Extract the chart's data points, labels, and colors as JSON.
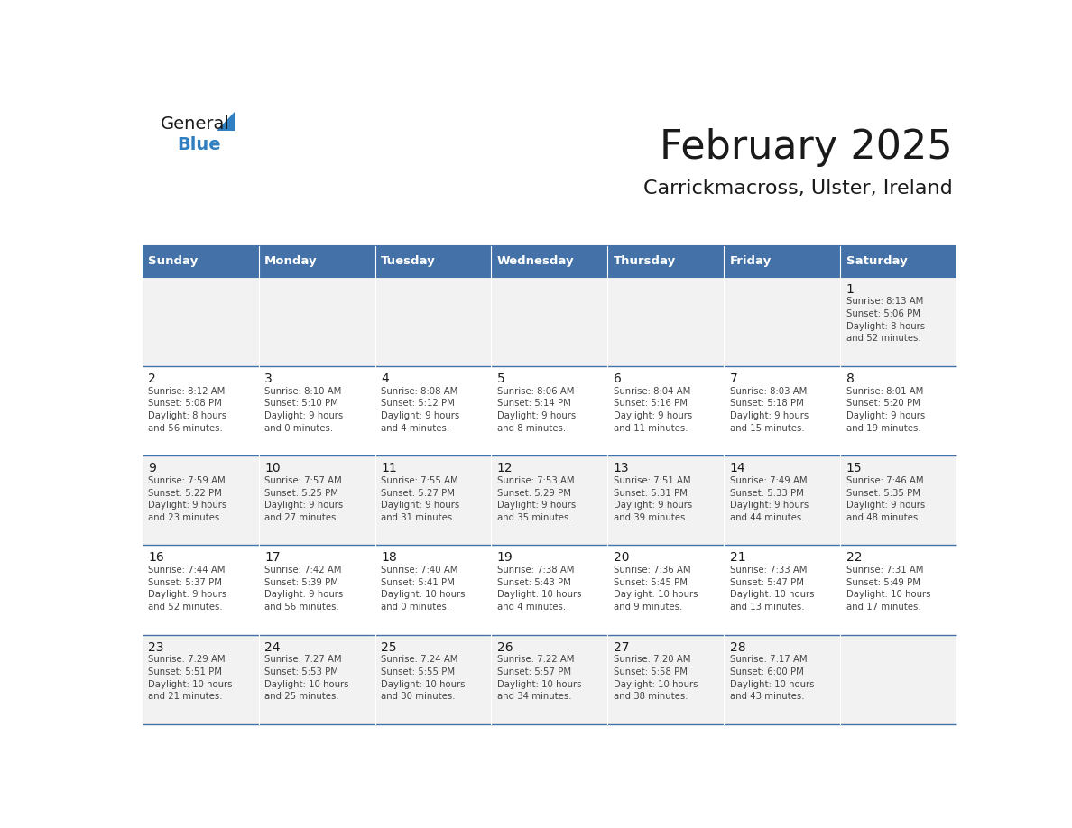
{
  "title": "February 2025",
  "subtitle": "Carrickmacross, Ulster, Ireland",
  "header_bg": "#4472a8",
  "header_text": "#ffffff",
  "day_names": [
    "Sunday",
    "Monday",
    "Tuesday",
    "Wednesday",
    "Thursday",
    "Friday",
    "Saturday"
  ],
  "row_bg_odd": "#f2f2f2",
  "row_bg_even": "#ffffff",
  "cell_border": "#4472a8",
  "text_color": "#444444",
  "day_num_color": "#1a1a1a",
  "calendar": [
    [
      {
        "day": null,
        "info": ""
      },
      {
        "day": null,
        "info": ""
      },
      {
        "day": null,
        "info": ""
      },
      {
        "day": null,
        "info": ""
      },
      {
        "day": null,
        "info": ""
      },
      {
        "day": null,
        "info": ""
      },
      {
        "day": 1,
        "info": "Sunrise: 8:13 AM\nSunset: 5:06 PM\nDaylight: 8 hours\nand 52 minutes."
      }
    ],
    [
      {
        "day": 2,
        "info": "Sunrise: 8:12 AM\nSunset: 5:08 PM\nDaylight: 8 hours\nand 56 minutes."
      },
      {
        "day": 3,
        "info": "Sunrise: 8:10 AM\nSunset: 5:10 PM\nDaylight: 9 hours\nand 0 minutes."
      },
      {
        "day": 4,
        "info": "Sunrise: 8:08 AM\nSunset: 5:12 PM\nDaylight: 9 hours\nand 4 minutes."
      },
      {
        "day": 5,
        "info": "Sunrise: 8:06 AM\nSunset: 5:14 PM\nDaylight: 9 hours\nand 8 minutes."
      },
      {
        "day": 6,
        "info": "Sunrise: 8:04 AM\nSunset: 5:16 PM\nDaylight: 9 hours\nand 11 minutes."
      },
      {
        "day": 7,
        "info": "Sunrise: 8:03 AM\nSunset: 5:18 PM\nDaylight: 9 hours\nand 15 minutes."
      },
      {
        "day": 8,
        "info": "Sunrise: 8:01 AM\nSunset: 5:20 PM\nDaylight: 9 hours\nand 19 minutes."
      }
    ],
    [
      {
        "day": 9,
        "info": "Sunrise: 7:59 AM\nSunset: 5:22 PM\nDaylight: 9 hours\nand 23 minutes."
      },
      {
        "day": 10,
        "info": "Sunrise: 7:57 AM\nSunset: 5:25 PM\nDaylight: 9 hours\nand 27 minutes."
      },
      {
        "day": 11,
        "info": "Sunrise: 7:55 AM\nSunset: 5:27 PM\nDaylight: 9 hours\nand 31 minutes."
      },
      {
        "day": 12,
        "info": "Sunrise: 7:53 AM\nSunset: 5:29 PM\nDaylight: 9 hours\nand 35 minutes."
      },
      {
        "day": 13,
        "info": "Sunrise: 7:51 AM\nSunset: 5:31 PM\nDaylight: 9 hours\nand 39 minutes."
      },
      {
        "day": 14,
        "info": "Sunrise: 7:49 AM\nSunset: 5:33 PM\nDaylight: 9 hours\nand 44 minutes."
      },
      {
        "day": 15,
        "info": "Sunrise: 7:46 AM\nSunset: 5:35 PM\nDaylight: 9 hours\nand 48 minutes."
      }
    ],
    [
      {
        "day": 16,
        "info": "Sunrise: 7:44 AM\nSunset: 5:37 PM\nDaylight: 9 hours\nand 52 minutes."
      },
      {
        "day": 17,
        "info": "Sunrise: 7:42 AM\nSunset: 5:39 PM\nDaylight: 9 hours\nand 56 minutes."
      },
      {
        "day": 18,
        "info": "Sunrise: 7:40 AM\nSunset: 5:41 PM\nDaylight: 10 hours\nand 0 minutes."
      },
      {
        "day": 19,
        "info": "Sunrise: 7:38 AM\nSunset: 5:43 PM\nDaylight: 10 hours\nand 4 minutes."
      },
      {
        "day": 20,
        "info": "Sunrise: 7:36 AM\nSunset: 5:45 PM\nDaylight: 10 hours\nand 9 minutes."
      },
      {
        "day": 21,
        "info": "Sunrise: 7:33 AM\nSunset: 5:47 PM\nDaylight: 10 hours\nand 13 minutes."
      },
      {
        "day": 22,
        "info": "Sunrise: 7:31 AM\nSunset: 5:49 PM\nDaylight: 10 hours\nand 17 minutes."
      }
    ],
    [
      {
        "day": 23,
        "info": "Sunrise: 7:29 AM\nSunset: 5:51 PM\nDaylight: 10 hours\nand 21 minutes."
      },
      {
        "day": 24,
        "info": "Sunrise: 7:27 AM\nSunset: 5:53 PM\nDaylight: 10 hours\nand 25 minutes."
      },
      {
        "day": 25,
        "info": "Sunrise: 7:24 AM\nSunset: 5:55 PM\nDaylight: 10 hours\nand 30 minutes."
      },
      {
        "day": 26,
        "info": "Sunrise: 7:22 AM\nSunset: 5:57 PM\nDaylight: 10 hours\nand 34 minutes."
      },
      {
        "day": 27,
        "info": "Sunrise: 7:20 AM\nSunset: 5:58 PM\nDaylight: 10 hours\nand 38 minutes."
      },
      {
        "day": 28,
        "info": "Sunrise: 7:17 AM\nSunset: 6:00 PM\nDaylight: 10 hours\nand 43 minutes."
      },
      {
        "day": null,
        "info": ""
      }
    ]
  ],
  "logo_text_general": "General",
  "logo_text_blue": "Blue",
  "logo_general_color": "#1a1a1a",
  "logo_blue_color": "#2f7fc1"
}
